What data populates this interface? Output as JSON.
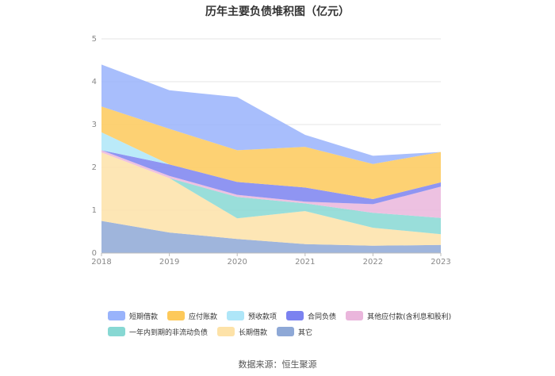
{
  "chart_data": {
    "type": "area",
    "title": "历年主要负债堆积图（亿元）",
    "x": [
      "2018",
      "2019",
      "2020",
      "2021",
      "2022",
      "2023"
    ],
    "ylim": [
      0,
      5
    ],
    "yticks": [
      "0",
      "1",
      "2",
      "3",
      "4",
      "5"
    ],
    "grid": true,
    "legend_position": "bottom",
    "stacked": true,
    "series": [
      {
        "name": "其它",
        "color": "#8ea8d6",
        "values": [
          0.75,
          0.48,
          0.33,
          0.21,
          0.17,
          0.19
        ]
      },
      {
        "name": "长期借款",
        "color": "#fde2a8",
        "values": [
          1.6,
          1.27,
          0.48,
          0.77,
          0.42,
          0.25
        ]
      },
      {
        "name": "一年内到期的非流动负债",
        "color": "#87d8d3",
        "values": [
          0.0,
          0.0,
          0.5,
          0.18,
          0.35,
          0.38
        ]
      },
      {
        "name": "其他应付款(含利息和股利)",
        "color": "#eab6dc",
        "values": [
          0.05,
          0.05,
          0.05,
          0.04,
          0.2,
          0.73
        ]
      },
      {
        "name": "合同负债",
        "color": "#7b82f0",
        "values": [
          0.0,
          0.27,
          0.3,
          0.33,
          0.12,
          0.1
        ]
      },
      {
        "name": "预收款项",
        "color": "#aee6f8",
        "values": [
          0.42,
          0.0,
          0.0,
          0.0,
          0.0,
          0.0
        ]
      },
      {
        "name": "应付账款",
        "color": "#fdc95a",
        "values": [
          0.6,
          0.83,
          0.74,
          0.95,
          0.82,
          0.71
        ]
      },
      {
        "name": "短期借款",
        "color": "#99b3fb",
        "values": [
          0.98,
          0.9,
          1.24,
          0.28,
          0.19,
          0.0
        ]
      }
    ]
  },
  "legend": {
    "row1": [
      "短期借款",
      "应付账款",
      "预收款项",
      "合同负债",
      "其他应付款(含利息和股利)"
    ],
    "row2": [
      "一年内到期的非流动负债",
      "长期借款",
      "其它"
    ]
  },
  "source": "数据来源：恒生聚源"
}
